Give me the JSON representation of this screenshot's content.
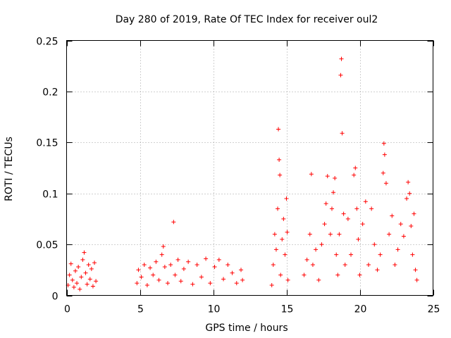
{
  "chart_data": {
    "type": "scatter",
    "title": "Day 280 of 2019, Rate Of TEC Index for receiver oul2",
    "xlabel": "GPS time / hours",
    "ylabel": "ROTI / TECUs",
    "xlim": [
      0,
      25
    ],
    "ylim": [
      0,
      0.25
    ],
    "x_ticks": [
      0,
      5,
      10,
      15,
      20,
      25
    ],
    "x_tick_labels": [
      "0",
      "5",
      "10",
      "15",
      "20",
      "25"
    ],
    "y_ticks": [
      0,
      0.05,
      0.1,
      0.15,
      0.2,
      0.25
    ],
    "y_tick_labels": [
      "0",
      "0.05",
      "0.1",
      "0.15",
      "0.2",
      "0.25"
    ],
    "grid": true,
    "legend": "none",
    "marker": "+",
    "color": "#ff0000",
    "series": [
      {
        "points": [
          [
            0.1,
            0.01
          ],
          [
            0.2,
            0.02
          ],
          [
            0.3,
            0.031
          ],
          [
            0.4,
            0.015
          ],
          [
            0.5,
            0.008
          ],
          [
            0.6,
            0.024
          ],
          [
            0.7,
            0.012
          ],
          [
            0.8,
            0.028
          ],
          [
            0.9,
            0.006
          ],
          [
            1.0,
            0.018
          ],
          [
            1.1,
            0.035
          ],
          [
            1.2,
            0.042
          ],
          [
            1.3,
            0.022
          ],
          [
            1.4,
            0.011
          ],
          [
            1.5,
            0.03
          ],
          [
            1.6,
            0.016
          ],
          [
            1.7,
            0.026
          ],
          [
            1.8,
            0.009
          ],
          [
            1.9,
            0.032
          ],
          [
            2.0,
            0.014
          ],
          [
            4.8,
            0.012
          ],
          [
            4.9,
            0.025
          ],
          [
            5.1,
            0.018
          ],
          [
            5.3,
            0.03
          ],
          [
            5.5,
            0.01
          ],
          [
            5.7,
            0.027
          ],
          [
            5.9,
            0.02
          ],
          [
            6.1,
            0.033
          ],
          [
            6.3,
            0.015
          ],
          [
            6.5,
            0.04
          ],
          [
            6.6,
            0.048
          ],
          [
            6.7,
            0.028
          ],
          [
            6.9,
            0.012
          ],
          [
            7.1,
            0.03
          ],
          [
            7.3,
            0.072
          ],
          [
            7.4,
            0.02
          ],
          [
            7.6,
            0.035
          ],
          [
            7.8,
            0.014
          ],
          [
            8.0,
            0.026
          ],
          [
            8.3,
            0.033
          ],
          [
            8.6,
            0.011
          ],
          [
            8.9,
            0.03
          ],
          [
            9.2,
            0.018
          ],
          [
            9.5,
            0.036
          ],
          [
            9.8,
            0.012
          ],
          [
            10.1,
            0.028
          ],
          [
            10.4,
            0.035
          ],
          [
            10.7,
            0.016
          ],
          [
            11.0,
            0.03
          ],
          [
            11.3,
            0.022
          ],
          [
            11.6,
            0.012
          ],
          [
            11.9,
            0.025
          ],
          [
            12.0,
            0.015
          ],
          [
            14.0,
            0.01
          ],
          [
            14.1,
            0.03
          ],
          [
            14.2,
            0.06
          ],
          [
            14.3,
            0.045
          ],
          [
            14.4,
            0.085
          ],
          [
            14.45,
            0.163
          ],
          [
            14.5,
            0.133
          ],
          [
            14.55,
            0.118
          ],
          [
            14.6,
            0.02
          ],
          [
            14.7,
            0.055
          ],
          [
            14.8,
            0.075
          ],
          [
            14.9,
            0.04
          ],
          [
            15.0,
            0.095
          ],
          [
            15.05,
            0.062
          ],
          [
            15.1,
            0.015
          ],
          [
            16.2,
            0.02
          ],
          [
            16.4,
            0.035
          ],
          [
            16.6,
            0.06
          ],
          [
            16.7,
            0.119
          ],
          [
            16.8,
            0.03
          ],
          [
            17.0,
            0.045
          ],
          [
            17.2,
            0.015
          ],
          [
            17.4,
            0.05
          ],
          [
            17.6,
            0.07
          ],
          [
            17.7,
            0.09
          ],
          [
            17.8,
            0.117
          ],
          [
            18.0,
            0.06
          ],
          [
            18.1,
            0.085
          ],
          [
            18.2,
            0.101
          ],
          [
            18.3,
            0.115
          ],
          [
            18.4,
            0.04
          ],
          [
            18.5,
            0.02
          ],
          [
            18.6,
            0.06
          ],
          [
            18.7,
            0.216
          ],
          [
            18.75,
            0.232
          ],
          [
            18.8,
            0.159
          ],
          [
            18.9,
            0.08
          ],
          [
            19.0,
            0.03
          ],
          [
            19.2,
            0.075
          ],
          [
            19.4,
            0.04
          ],
          [
            19.6,
            0.118
          ],
          [
            19.7,
            0.125
          ],
          [
            19.8,
            0.085
          ],
          [
            19.9,
            0.055
          ],
          [
            20.0,
            0.02
          ],
          [
            20.2,
            0.07
          ],
          [
            20.4,
            0.092
          ],
          [
            20.6,
            0.03
          ],
          [
            20.8,
            0.085
          ],
          [
            21.0,
            0.05
          ],
          [
            21.2,
            0.025
          ],
          [
            21.4,
            0.04
          ],
          [
            21.6,
            0.12
          ],
          [
            21.65,
            0.149
          ],
          [
            21.7,
            0.138
          ],
          [
            21.8,
            0.11
          ],
          [
            22.0,
            0.06
          ],
          [
            22.2,
            0.078
          ],
          [
            22.4,
            0.03
          ],
          [
            22.6,
            0.045
          ],
          [
            22.8,
            0.07
          ],
          [
            23.0,
            0.058
          ],
          [
            23.2,
            0.095
          ],
          [
            23.3,
            0.111
          ],
          [
            23.4,
            0.1
          ],
          [
            23.5,
            0.068
          ],
          [
            23.6,
            0.04
          ],
          [
            23.7,
            0.08
          ],
          [
            23.8,
            0.025
          ],
          [
            23.9,
            0.015
          ]
        ]
      }
    ]
  }
}
